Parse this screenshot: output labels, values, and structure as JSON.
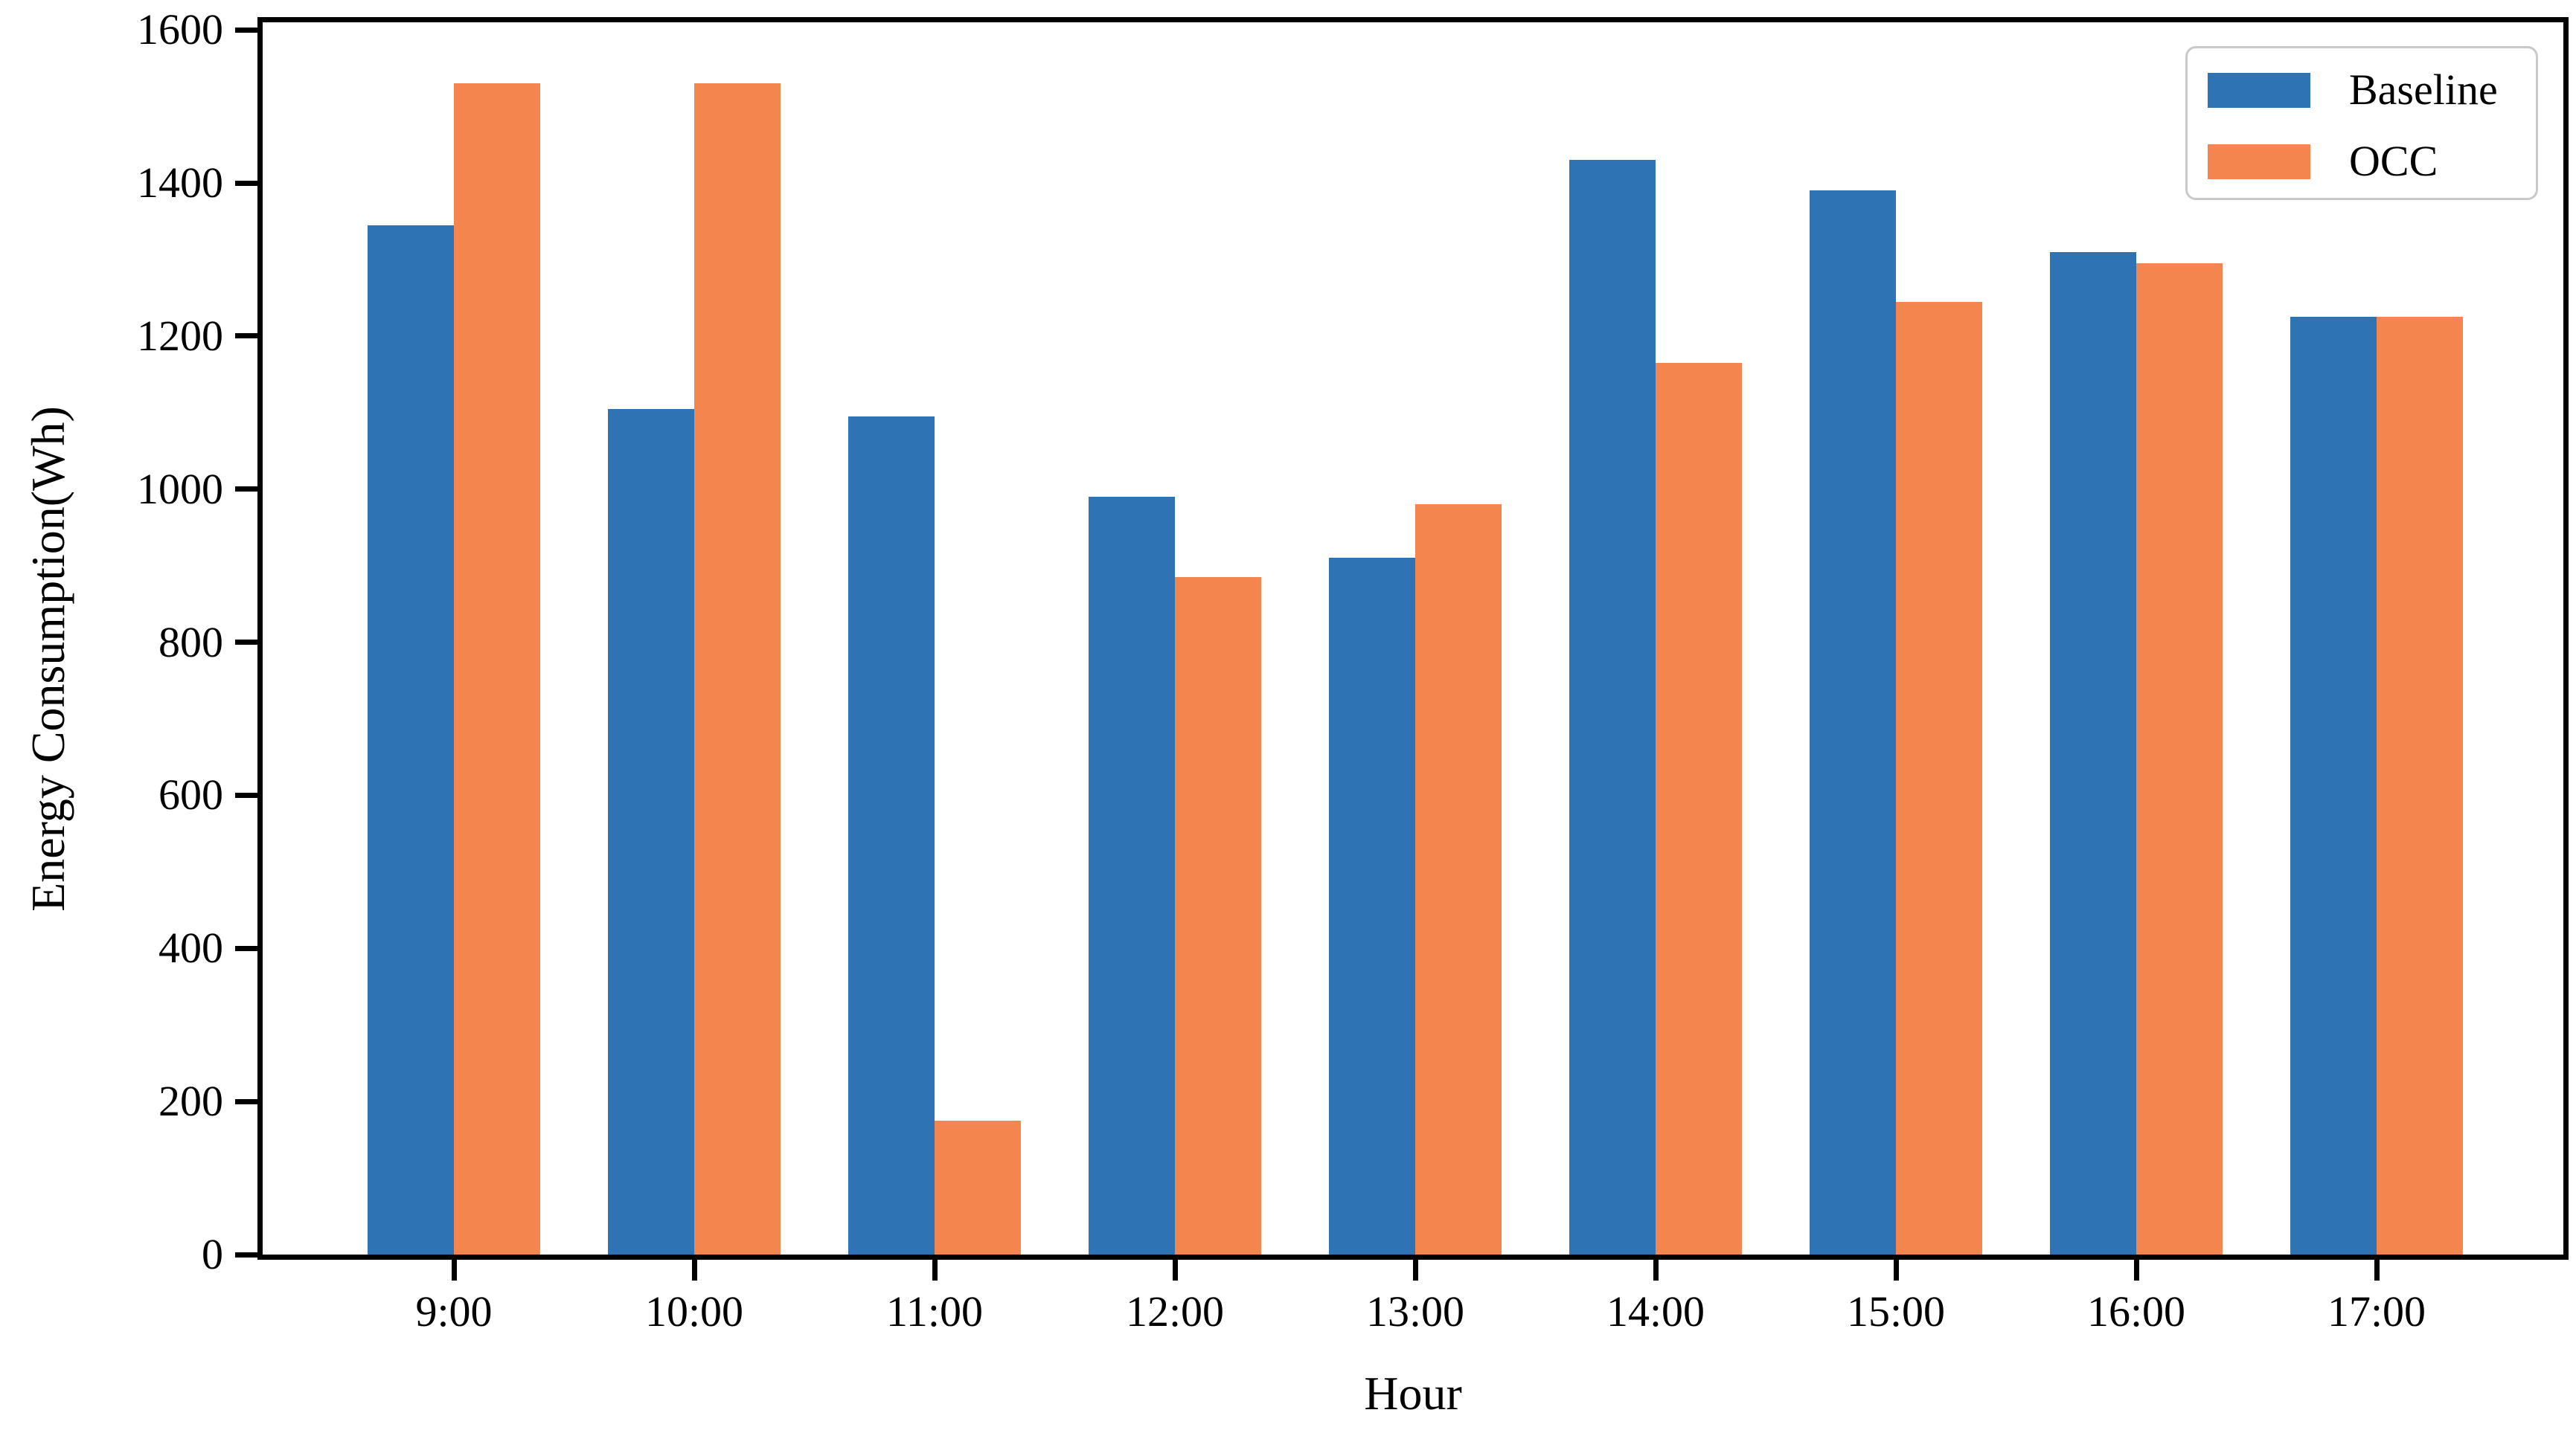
{
  "figure": {
    "background": "#ffffff",
    "axis_color": "#000000",
    "legend_border_color": "#c9c9c9"
  },
  "chart_data": {
    "type": "bar",
    "title": "",
    "xlabel": "Hour",
    "ylabel": "Energy Consumption(Wh)",
    "categories": [
      "9:00",
      "10:00",
      "11:00",
      "12:00",
      "13:00",
      "14:00",
      "15:00",
      "16:00",
      "17:00"
    ],
    "series": [
      {
        "name": "Baseline",
        "color": "#2e74b5",
        "values": [
          1345,
          1105,
          1095,
          990,
          910,
          1430,
          1390,
          1310,
          1225
        ]
      },
      {
        "name": "OCC",
        "color": "#f5854e",
        "values": [
          1530,
          1530,
          175,
          885,
          980,
          1165,
          1245,
          1295,
          1225
        ]
      }
    ],
    "ylim": [
      0,
      1610
    ],
    "yticks": [
      0,
      200,
      400,
      600,
      800,
      1000,
      1200,
      1400,
      1600
    ],
    "grid": false,
    "legend_position": "upper right"
  }
}
